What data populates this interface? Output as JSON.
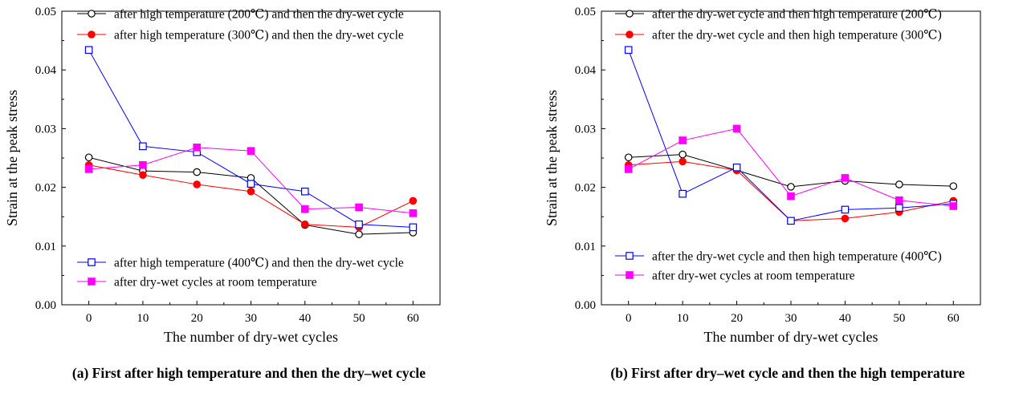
{
  "chart_data": [
    {
      "type": "line",
      "id": "a",
      "caption": "(a) First after high temperature and then the dry–wet cycle",
      "xlabel": "The number of dry-wet cycles",
      "ylabel": "Strain at the peak stress",
      "xlim": [
        -5,
        65
      ],
      "ylim": [
        0.0,
        0.05
      ],
      "xticks": [
        "0",
        "10",
        "20",
        "30",
        "40",
        "50",
        "60"
      ],
      "yticks": [
        "0.00",
        "0.01",
        "0.02",
        "0.03",
        "0.04",
        "0.05"
      ],
      "x": [
        0,
        10,
        20,
        30,
        40,
        50,
        60
      ],
      "legend_top": "top-left",
      "legend_bottom": "bottom-left",
      "series": [
        {
          "name": "after high temperature (200℃) and then the dry-wet cycle",
          "color": "#000000",
          "marker": "open-circle",
          "legend": "top",
          "values": [
            0.0251,
            0.0228,
            0.0226,
            0.0216,
            0.0136,
            0.012,
            0.0123
          ]
        },
        {
          "name": "after high temperature (300℃) and then the dry-wet cycle",
          "color": "#ff0000",
          "marker": "filled-circle",
          "legend": "top",
          "values": [
            0.0238,
            0.0221,
            0.0205,
            0.0193,
            0.0137,
            0.0132,
            0.0177
          ]
        },
        {
          "name": "after high temperature (400℃) and then the dry-wet cycle",
          "color": "#0000ff",
          "marker": "open-square",
          "legend": "bottom",
          "values": [
            0.0434,
            0.027,
            0.026,
            0.0206,
            0.0193,
            0.0137,
            0.0132
          ]
        },
        {
          "name": "after dry-wet cycles at room temperature",
          "color": "#ff00ff",
          "marker": "filled-square",
          "legend": "bottom",
          "values": [
            0.0231,
            0.0238,
            0.0268,
            0.0262,
            0.0163,
            0.0166,
            0.0156
          ]
        }
      ]
    },
    {
      "type": "line",
      "id": "b",
      "caption": "(b) First after dry–wet cycle and then the high temperature",
      "xlabel": "The number of dry-wet cycles",
      "ylabel": "Strain at the peak stress",
      "xlim": [
        -5,
        65
      ],
      "ylim": [
        0.0,
        0.05
      ],
      "xticks": [
        "0",
        "10",
        "20",
        "30",
        "40",
        "50",
        "60"
      ],
      "yticks": [
        "0.00",
        "0.01",
        "0.02",
        "0.03",
        "0.04",
        "0.05"
      ],
      "x": [
        0,
        10,
        20,
        30,
        40,
        50,
        60
      ],
      "legend_top": "top-left",
      "legend_bottom": "bottom-left",
      "series": [
        {
          "name": "after the dry-wet cycle and then high temperature (200℃)",
          "color": "#000000",
          "marker": "open-circle",
          "legend": "top",
          "values": [
            0.0251,
            0.0256,
            0.0229,
            0.0201,
            0.0211,
            0.0205,
            0.0202
          ]
        },
        {
          "name": "after the dry-wet cycle and then high temperature (300℃)",
          "color": "#ff0000",
          "marker": "filled-circle",
          "legend": "top",
          "values": [
            0.0238,
            0.0244,
            0.0229,
            0.0143,
            0.0147,
            0.0158,
            0.0177
          ]
        },
        {
          "name": "after the dry-wet cycle and then high temperature (400℃)",
          "color": "#0000ff",
          "marker": "open-square",
          "legend": "bottom",
          "values": [
            0.0434,
            0.0189,
            0.0234,
            0.0143,
            0.0162,
            0.0165,
            0.0172
          ]
        },
        {
          "name": "after dry-wet cycles at room temperature",
          "color": "#ff00ff",
          "marker": "filled-square",
          "legend": "bottom",
          "values": [
            0.0231,
            0.028,
            0.03,
            0.0185,
            0.0216,
            0.0178,
            0.0168
          ]
        }
      ]
    }
  ]
}
